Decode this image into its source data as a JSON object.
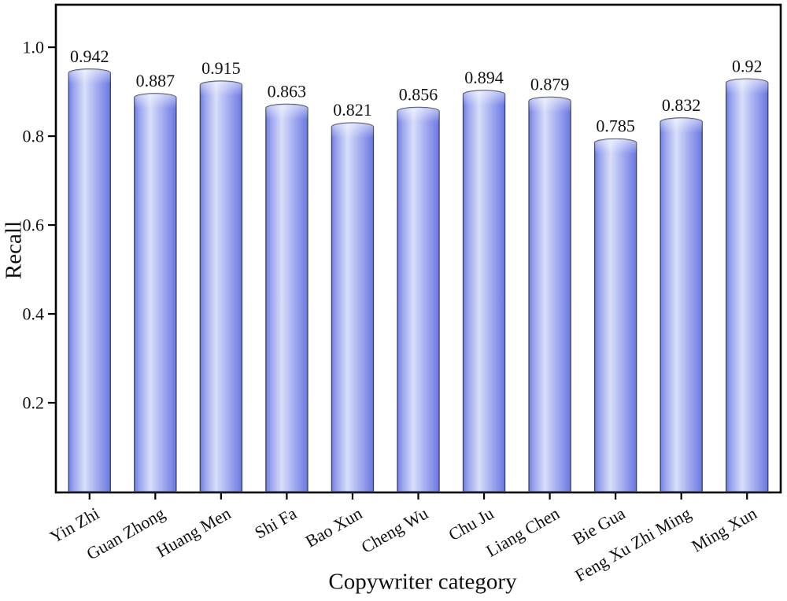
{
  "chart_data": {
    "type": "bar",
    "title": "",
    "xlabel": "Copywriter category",
    "ylabel": "Recall",
    "categories": [
      "Yin Zhi",
      "Guan Zhong",
      "Huang Men",
      "Shi Fa",
      "Bao Xun",
      "Cheng Wu",
      "Chu Ju",
      "Liang Chen",
      "Bie Gua",
      "Feng Xu Zhi Ming",
      "Ming Xun"
    ],
    "values": [
      0.942,
      0.887,
      0.915,
      0.863,
      0.821,
      0.856,
      0.894,
      0.879,
      0.785,
      0.832,
      0.92
    ],
    "value_labels": [
      "0.942",
      "0.887",
      "0.915",
      "0.863",
      "0.821",
      "0.856",
      "0.894",
      "0.879",
      "0.785",
      "0.832",
      "0.92"
    ],
    "yticks": [
      0.2,
      0.4,
      0.6,
      0.8,
      1.0
    ],
    "ytick_labels": [
      "0.2",
      "0.4",
      "0.6",
      "0.8",
      "1.0"
    ],
    "ylim": [
      0,
      1.094
    ],
    "grid": false,
    "legend": null,
    "x_tick_rotation_deg": 30,
    "colors": {
      "background": "#ffffff",
      "axis": "#000000",
      "bar_outline": "#3d4566",
      "bar_edge": "#6b78e1",
      "bar_light": "#d8def9",
      "bar_gradient_stops": [
        [
          "0%",
          "#7280e4"
        ],
        [
          "12%",
          "#9aa4ed"
        ],
        [
          "38%",
          "#d8def9"
        ],
        [
          "72%",
          "#9ba5ee"
        ],
        [
          "100%",
          "#6b78e1"
        ]
      ]
    }
  }
}
